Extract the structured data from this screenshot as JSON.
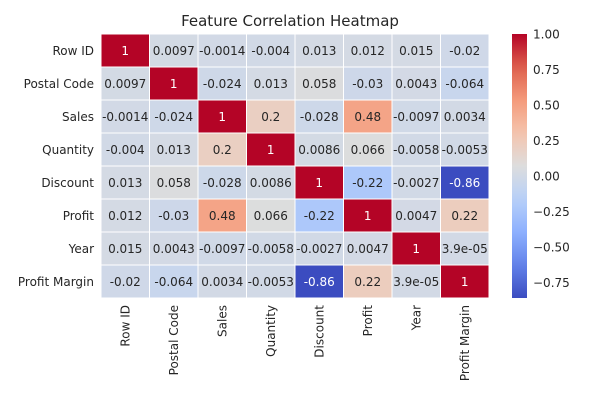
{
  "chart_data": {
    "type": "heatmap",
    "title": "Feature Correlation Heatmap",
    "xlabel": "",
    "ylabel": "",
    "x_categories": [
      "Row ID",
      "Postal Code",
      "Sales",
      "Quantity",
      "Discount",
      "Profit",
      "Year",
      "Profit Margin"
    ],
    "y_categories": [
      "Row ID",
      "Postal Code",
      "Sales",
      "Quantity",
      "Discount",
      "Profit",
      "Year",
      "Profit Margin"
    ],
    "values": [
      [
        1,
        0.0097,
        -0.0014,
        -0.004,
        0.013,
        0.012,
        0.015,
        -0.02
      ],
      [
        0.0097,
        1,
        -0.024,
        0.013,
        0.058,
        -0.03,
        0.0043,
        -0.064
      ],
      [
        -0.0014,
        -0.024,
        1,
        0.2,
        -0.028,
        0.48,
        -0.0097,
        0.0034
      ],
      [
        -0.004,
        0.013,
        0.2,
        1,
        0.0086,
        0.066,
        -0.0058,
        -0.0053
      ],
      [
        0.013,
        0.058,
        -0.028,
        0.0086,
        1,
        -0.22,
        -0.0027,
        -0.86
      ],
      [
        0.012,
        -0.03,
        0.48,
        0.066,
        -0.22,
        1,
        0.0047,
        0.22
      ],
      [
        0.015,
        0.0043,
        -0.0097,
        -0.0058,
        -0.0027,
        0.0047,
        1,
        3.9e-05
      ],
      [
        -0.02,
        -0.064,
        0.0034,
        -0.0053,
        -0.86,
        0.22,
        3.9e-05,
        1
      ]
    ],
    "cell_labels": [
      [
        "1",
        "0.0097",
        "-0.0014",
        "-0.004",
        "0.013",
        "0.012",
        "0.015",
        "-0.02"
      ],
      [
        "0.0097",
        "1",
        "-0.024",
        "0.013",
        "0.058",
        "-0.03",
        "0.0043",
        "-0.064"
      ],
      [
        "-0.0014",
        "-0.024",
        "1",
        "0.2",
        "-0.028",
        "0.48",
        "-0.0097",
        "0.0034"
      ],
      [
        "-0.004",
        "0.013",
        "0.2",
        "1",
        "0.0086",
        "0.066",
        "-0.0058",
        "-0.0053"
      ],
      [
        "0.013",
        "0.058",
        "-0.028",
        "0.0086",
        "1",
        "-0.22",
        "-0.0027",
        "-0.86"
      ],
      [
        "0.012",
        "-0.03",
        "0.48",
        "0.066",
        "-0.22",
        "1",
        "0.0047",
        "0.22"
      ],
      [
        "0.015",
        "0.0043",
        "-0.0097",
        "-0.0058",
        "-0.0027",
        "0.0047",
        "1",
        "3.9e-05"
      ],
      [
        "-0.02",
        "-0.064",
        "0.0034",
        "-0.0053",
        "-0.86",
        "0.22",
        "3.9e-05",
        "1"
      ]
    ],
    "colormap": "coolwarm",
    "color_range": [
      -0.86,
      1
    ],
    "colorbar": {
      "ticks": [
        1.0,
        0.75,
        0.5,
        0.25,
        0.0,
        -0.25,
        -0.5,
        -0.75
      ],
      "tick_labels": [
        "1.00",
        "0.75",
        "0.50",
        "0.25",
        "0.00",
        "−0.25",
        "−0.50",
        "−0.75"
      ]
    },
    "grid": true,
    "legend": "colorbar-right"
  }
}
